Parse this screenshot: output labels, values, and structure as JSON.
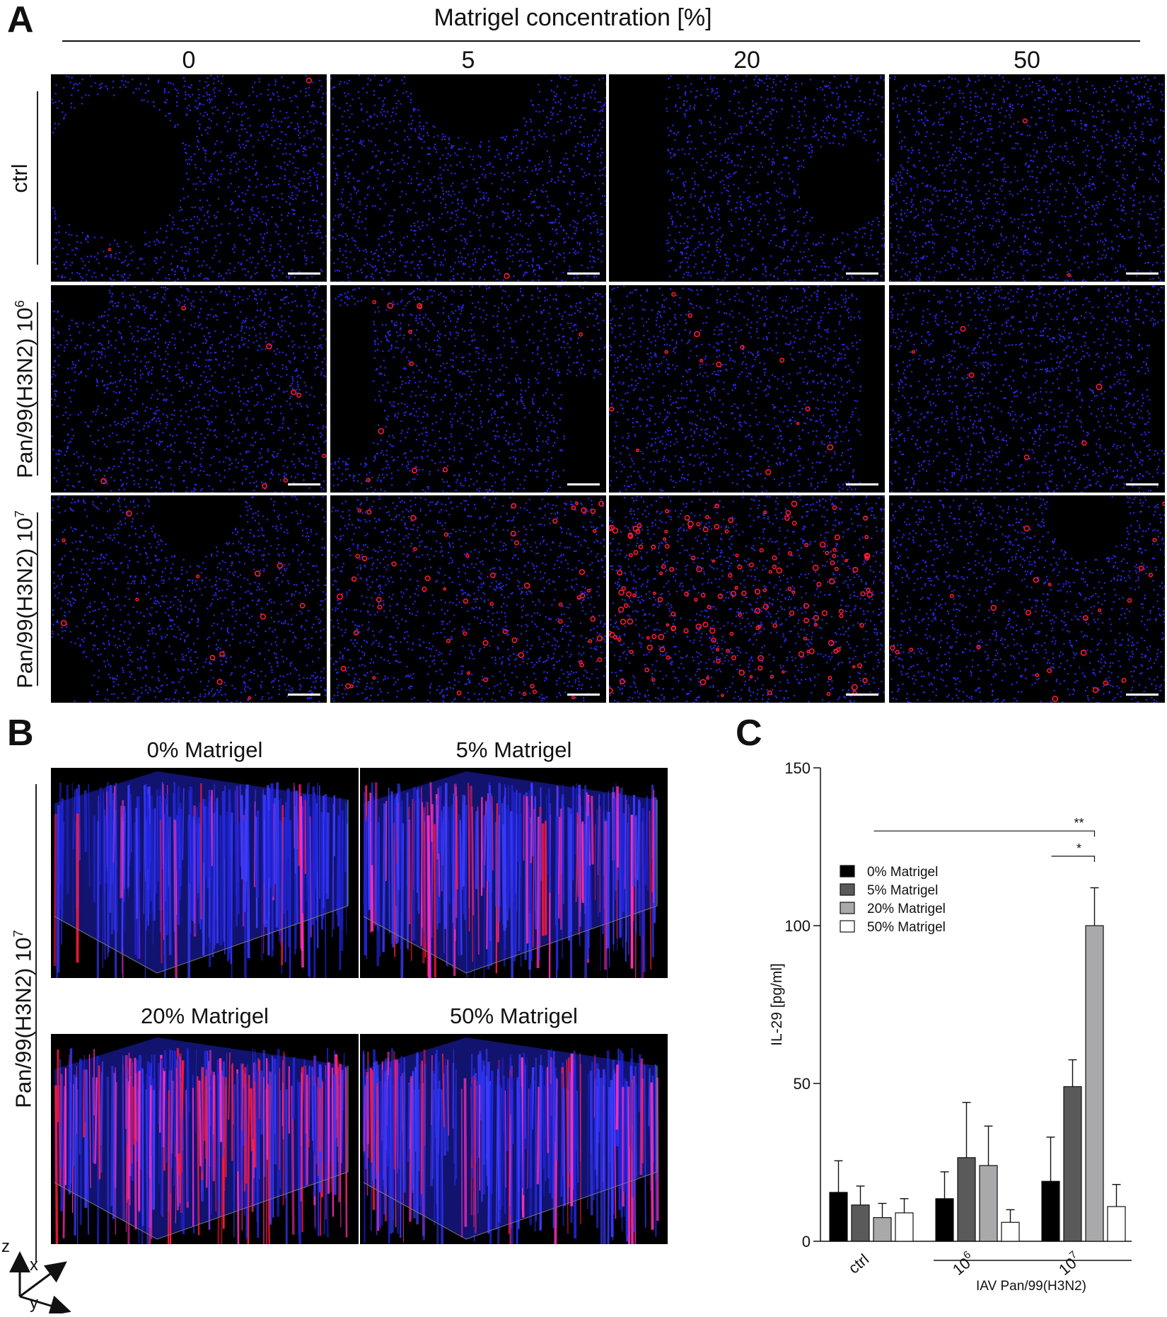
{
  "panelA": {
    "letter": "A",
    "header": "Matrigel concentration [%]",
    "columns": [
      "0",
      "5",
      "20",
      "50"
    ],
    "rows": [
      {
        "label": "ctrl",
        "sup": ""
      },
      {
        "label": "Pan/99(H3N2) 10",
        "sup": "6"
      },
      {
        "label": "Pan/99(H3N2) 10",
        "sup": "7"
      }
    ],
    "channel_colors": {
      "nuclei": "#2a2cff",
      "virus": "#ff1a3a"
    }
  },
  "panelB": {
    "letter": "B",
    "row_label": "Pan/99(H3N2) 10",
    "row_label_sup": "7",
    "titles": [
      "0% Matrigel",
      "5% Matrigel",
      "20% Matrigel",
      "50% Matrigel"
    ],
    "axes": {
      "z": "z",
      "x": "x",
      "y": "y"
    }
  },
  "panelC": {
    "letter": "C"
  },
  "chart_data": {
    "type": "bar",
    "ylabel": "IL-29 [pg/ml]",
    "ylim": [
      0,
      150
    ],
    "yticks": [
      0,
      50,
      100,
      150
    ],
    "categories": [
      "ctrl",
      "10",
      "10"
    ],
    "category_sups": [
      "",
      "6",
      "7"
    ],
    "group_bracket_label": "IAV Pan/99(H3N2)",
    "series": [
      {
        "name": "0% Matrigel",
        "color": "#000000",
        "values": [
          15.5,
          13.5,
          19
        ],
        "errors": [
          10,
          8.5,
          14
        ]
      },
      {
        "name": "5% Matrigel",
        "color": "#5a5a5a",
        "values": [
          11.5,
          26.5,
          49
        ],
        "errors": [
          6,
          17.5,
          8.5
        ]
      },
      {
        "name": "20% Matrigel",
        "color": "#a9a9ab",
        "values": [
          7.5,
          24,
          100
        ],
        "errors": [
          4.5,
          12.5,
          12
        ]
      },
      {
        "name": "50% Matrigel",
        "color": "#ffffff",
        "values": [
          9,
          6,
          11
        ],
        "errors": [
          4.5,
          4,
          7
        ]
      }
    ],
    "significance": [
      {
        "label": "**",
        "from": "ctrl / 0% Matrigel",
        "to": "10^7 / 20% Matrigel"
      },
      {
        "label": "*",
        "from": "10^7 / 5% Matrigel",
        "to": "10^7 / 20% Matrigel"
      }
    ],
    "legend_position": "upper-left"
  }
}
